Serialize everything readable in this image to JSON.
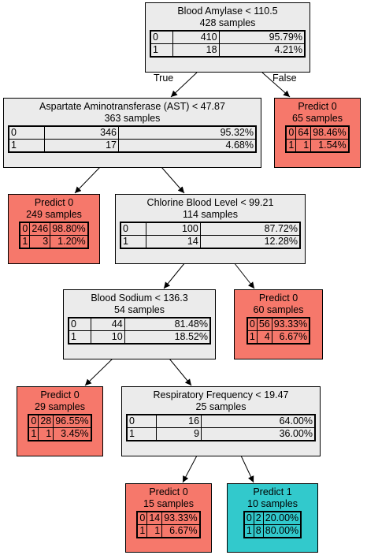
{
  "tree": {
    "edge_labels": {
      "true_label": "True",
      "false_label": "False"
    },
    "nodes": {
      "n1": {
        "title": "Blood Amylase < 110.5",
        "samples": "428 samples",
        "rows": [
          {
            "cls": "0",
            "count": "410",
            "pct": "95.79%"
          },
          {
            "cls": "1",
            "count": "18",
            "pct": "4.21%"
          }
        ]
      },
      "n2": {
        "title": "Aspartate Aminotransferase (AST) < 47.87",
        "samples": "363 samples",
        "rows": [
          {
            "cls": "0",
            "count": "346",
            "pct": "95.32%"
          },
          {
            "cls": "1",
            "count": "17",
            "pct": "4.68%"
          }
        ]
      },
      "n3": {
        "title": "Predict 0",
        "samples": "65 samples",
        "rows": [
          {
            "cls": "0",
            "count": "64",
            "pct": "98.46%"
          },
          {
            "cls": "1",
            "count": "1",
            "pct": "1.54%"
          }
        ]
      },
      "n4": {
        "title": "Predict 0",
        "samples": "249 samples",
        "rows": [
          {
            "cls": "0",
            "count": "246",
            "pct": "98.80%"
          },
          {
            "cls": "1",
            "count": "3",
            "pct": "1.20%"
          }
        ]
      },
      "n5": {
        "title": "Chlorine Blood Level < 99.21",
        "samples": "114 samples",
        "rows": [
          {
            "cls": "0",
            "count": "100",
            "pct": "87.72%"
          },
          {
            "cls": "1",
            "count": "14",
            "pct": "12.28%"
          }
        ]
      },
      "n6": {
        "title": "Blood Sodium < 136.3",
        "samples": "54 samples",
        "rows": [
          {
            "cls": "0",
            "count": "44",
            "pct": "81.48%"
          },
          {
            "cls": "1",
            "count": "10",
            "pct": "18.52%"
          }
        ]
      },
      "n7": {
        "title": "Predict 0",
        "samples": "60 samples",
        "rows": [
          {
            "cls": "0",
            "count": "56",
            "pct": "93.33%"
          },
          {
            "cls": "1",
            "count": "4",
            "pct": "6.67%"
          }
        ]
      },
      "n8": {
        "title": "Predict 0",
        "samples": "29 samples",
        "rows": [
          {
            "cls": "0",
            "count": "28",
            "pct": "96.55%"
          },
          {
            "cls": "1",
            "count": "1",
            "pct": "3.45%"
          }
        ]
      },
      "n9": {
        "title": "Respiratory Frequency < 19.47",
        "samples": "25 samples",
        "rows": [
          {
            "cls": "0",
            "count": "16",
            "pct": "64.00%"
          },
          {
            "cls": "1",
            "count": "9",
            "pct": "36.00%"
          }
        ]
      },
      "n10": {
        "title": "Predict 0",
        "samples": "15 samples",
        "rows": [
          {
            "cls": "0",
            "count": "14",
            "pct": "93.33%"
          },
          {
            "cls": "1",
            "count": "1",
            "pct": "6.67%"
          }
        ]
      },
      "n11": {
        "title": "Predict 1",
        "samples": "10 samples",
        "rows": [
          {
            "cls": "0",
            "count": "2",
            "pct": "20.00%"
          },
          {
            "cls": "1",
            "count": "8",
            "pct": "80.00%"
          }
        ]
      }
    },
    "colors": {
      "split_fill": "#ebebeb",
      "class0_fill": "#f6786b",
      "class1_fill": "#32c9cc",
      "line": "#000000"
    }
  }
}
